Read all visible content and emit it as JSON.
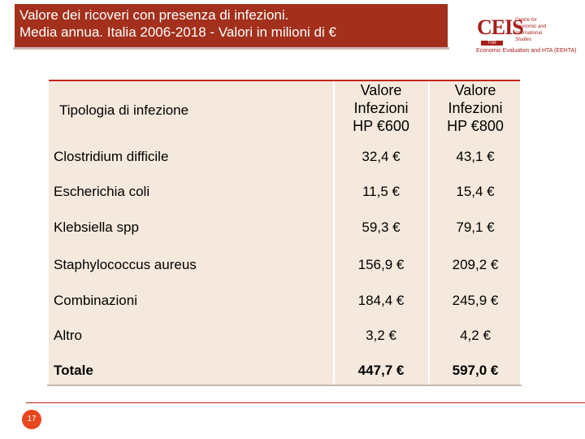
{
  "title": {
    "line1": "Valore dei ricoveri con presenza di infezioni.",
    "line2": "Media annua. Italia 2006-2018 - Valori in milioni di €"
  },
  "logo": {
    "letters": "CEIS",
    "sub": "TOR VERGATA",
    "lines": [
      "Centre for",
      "Economic and",
      "International",
      "Studies"
    ],
    "caption": "Economic Evaluation and HTA (EEHTA)"
  },
  "table": {
    "header_type": "Tipologia di infezione",
    "header_col1": [
      "Valore",
      "Infezioni",
      "HP €600"
    ],
    "header_col2": [
      "Valore",
      "Infezioni",
      "HP €800"
    ],
    "rows": [
      {
        "label": "Clostridium difficile",
        "v600": "32,4 €",
        "v800": "43,1 €"
      },
      {
        "label": "Escherichia coli",
        "v600": "11,5 €",
        "v800": "15,4 €"
      },
      {
        "label": "Klebsiella spp",
        "v600": "59,3 €",
        "v800": "79,1 €"
      },
      {
        "label": "Staphylococcus aureus",
        "v600": "156,9 €",
        "v800": "209,2 €"
      },
      {
        "label": "Combinazioni",
        "v600": "184,4 €",
        "v800": "245,9 €"
      },
      {
        "label": "Altro",
        "v600": "3,2 €",
        "v800": "4,2 €"
      }
    ],
    "total": {
      "label": "Totale",
      "v600": "447,7 €",
      "v800": "597,0 €"
    }
  },
  "page_number": "17",
  "colors": {
    "accent": "#a3301c",
    "table_bg": "#f5e9dd",
    "page_badge": "#e8471e"
  }
}
